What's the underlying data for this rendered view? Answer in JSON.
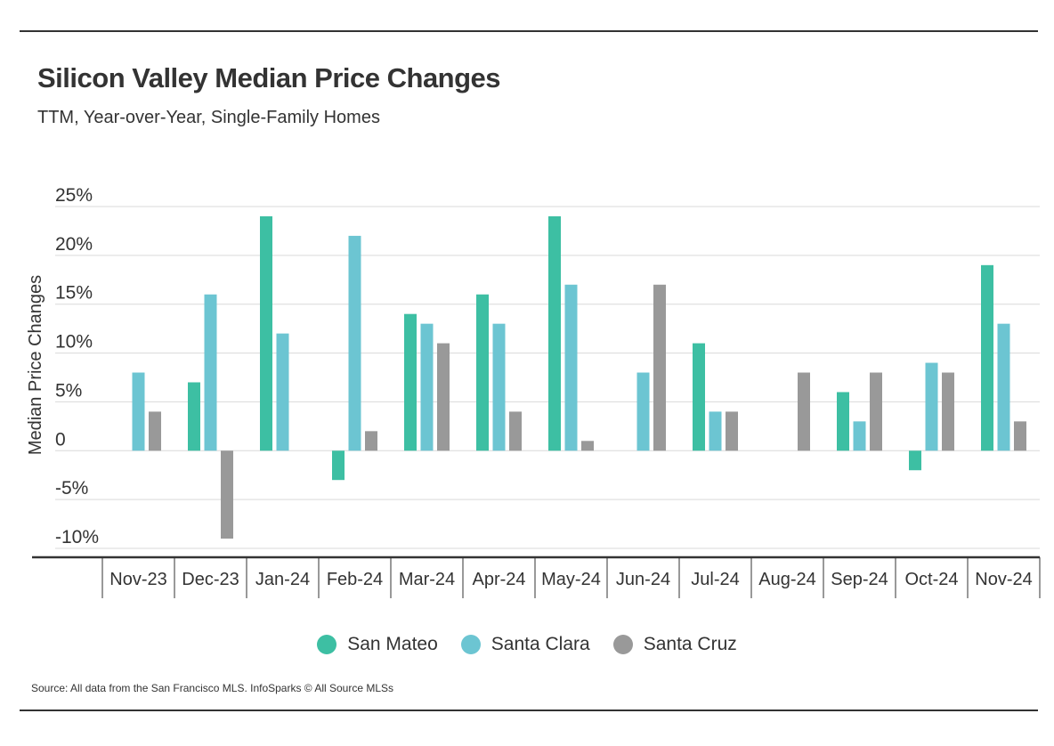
{
  "header": {
    "title": "Silicon Valley Median Price Changes",
    "subtitle": "TTM, Year-over-Year, Single-Family Homes"
  },
  "footer": {
    "source": "Source:  All data from the San Francisco MLS. InfoSparks © All Source MLSs"
  },
  "chart_data": {
    "type": "bar",
    "title": "Silicon Valley Median Price Changes",
    "subtitle": "TTM, Year-over-Year, Single-Family Homes",
    "xlabel": "",
    "ylabel": "Median Price Changes",
    "ylim": [
      -10,
      25
    ],
    "yticks": [
      25,
      20,
      15,
      10,
      5,
      0,
      -5,
      -10
    ],
    "ytick_labels": [
      "25%",
      "20%",
      "15%",
      "10%",
      "5%",
      "0",
      "-5%",
      "-10%"
    ],
    "grid": true,
    "legend_position": "bottom",
    "categories": [
      "Nov-23",
      "Dec-23",
      "Jan-24",
      "Feb-24",
      "Mar-24",
      "Apr-24",
      "May-24",
      "Jun-24",
      "Jul-24",
      "Aug-24",
      "Sep-24",
      "Oct-24",
      "Nov-24"
    ],
    "series": [
      {
        "name": "San Mateo",
        "color": "#3dbfa3",
        "values": [
          0,
          7,
          24,
          -3,
          14,
          16,
          24,
          0,
          11,
          0,
          6,
          -2,
          19
        ]
      },
      {
        "name": "Santa Clara",
        "color": "#6cc5d2",
        "values": [
          8,
          16,
          12,
          22,
          13,
          13,
          17,
          8,
          4,
          0,
          3,
          9,
          13
        ]
      },
      {
        "name": "Santa Cruz",
        "color": "#999999",
        "values": [
          4,
          -9,
          0,
          2,
          11,
          4,
          1,
          17,
          4,
          8,
          8,
          8,
          3
        ]
      }
    ]
  }
}
